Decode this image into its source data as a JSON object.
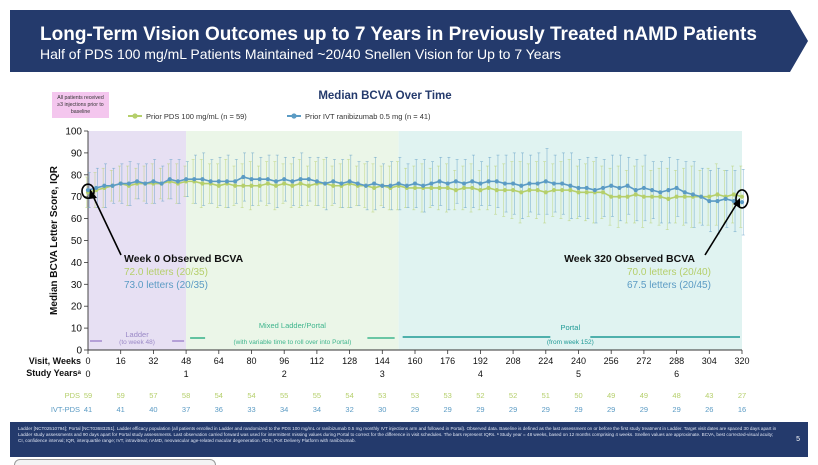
{
  "header": {
    "title": "Long-Term Vision Outcomes up to 7 Years in Previously Treated nAMD Patients",
    "subtitle": "Half of PDS 100 mg/mL Patients Maintained ~20/40 Snellen Vision for Up to 7 Years"
  },
  "footer": {
    "footnote": "Ladder [NCT02510794]; Portal [NCT03683251]. Ladder efficacy population (all patients enrolled in Ladder and randomized to the PDS 100 mg/mL or ranibizumab 0.5 mg monthly IVT injections arm and followed in Portal). Observed data. Baseline is defined as the last assessment on or before the first study treatment in Ladder. Target visit dates are spaced 30 days apart in Ladder study assessments and 90 days apart for Portal study assessments. Last observation carried forward was used for intermittent missing values during Portal to correct for the difference in visit schedules. The bars represent IQRs. ᵃ Study year = 48 weeks, based on 12 months comprising 4 weeks. Snellen values are approximate. BCVA, best corrected-visual acuity; CI, confidence interval; IQR, interquartile range; IVT, intravitreal; nAMD, neovascular age-related macular degeneration. PDS, Port Delivery Platform with ranibizumab.",
    "page_number": "5"
  },
  "colors": {
    "pds": "#b5cf6b",
    "ivt": "#5b9bc4",
    "ladder_bg": "#e7e0f3",
    "mixed_bg": "#ebf6e8",
    "portal_bg": "#e0f3f1",
    "header_bg": "#243a6c"
  },
  "chart_data": {
    "type": "line",
    "title": "Median BCVA Over Time",
    "ylabel": "Median BCVA Letter Score, IQR",
    "xlabel": "Visit, Weeks",
    "ylim": [
      0,
      100
    ],
    "yticks": [
      0,
      10,
      20,
      30,
      40,
      50,
      60,
      70,
      80,
      90,
      100
    ],
    "xlim": [
      0,
      320
    ],
    "xticks": [
      0,
      16,
      32,
      48,
      64,
      80,
      96,
      112,
      128,
      144,
      160,
      176,
      192,
      208,
      224,
      240,
      256,
      272,
      288,
      304,
      320
    ],
    "study_years_label": "Study Yearsᵃ",
    "study_years": [
      {
        "week": 0,
        "label": "0"
      },
      {
        "week": 48,
        "label": "1"
      },
      {
        "week": 96,
        "label": "2"
      },
      {
        "week": 144,
        "label": "3"
      },
      {
        "week": 192,
        "label": "4"
      },
      {
        "week": 240,
        "label": "5"
      },
      {
        "week": 288,
        "label": "6"
      }
    ],
    "baseline_note": "All patients received ≥3 injections prior to baseline",
    "legend_placement": "top-center",
    "series": [
      {
        "name": "Prior PDS 100 mg/mL (n = 59)",
        "color": "#b5cf6b",
        "points": [
          [
            0,
            72
          ],
          [
            4,
            73
          ],
          [
            8,
            74
          ],
          [
            12,
            75
          ],
          [
            16,
            76
          ],
          [
            20,
            75
          ],
          [
            24,
            76
          ],
          [
            28,
            76
          ],
          [
            32,
            76
          ],
          [
            36,
            76
          ],
          [
            40,
            77
          ],
          [
            44,
            76
          ],
          [
            48,
            77
          ],
          [
            52,
            77
          ],
          [
            56,
            76
          ],
          [
            60,
            76
          ],
          [
            64,
            75
          ],
          [
            68,
            76
          ],
          [
            72,
            75
          ],
          [
            76,
            75
          ],
          [
            80,
            75
          ],
          [
            84,
            75
          ],
          [
            88,
            76
          ],
          [
            92,
            75
          ],
          [
            96,
            76
          ],
          [
            100,
            75
          ],
          [
            104,
            76
          ],
          [
            108,
            75
          ],
          [
            112,
            76
          ],
          [
            116,
            76
          ],
          [
            120,
            75
          ],
          [
            124,
            75
          ],
          [
            128,
            76
          ],
          [
            132,
            75
          ],
          [
            136,
            75
          ],
          [
            140,
            74
          ],
          [
            144,
            75
          ],
          [
            148,
            74
          ],
          [
            152,
            75
          ],
          [
            156,
            74
          ],
          [
            160,
            74
          ],
          [
            164,
            74
          ],
          [
            168,
            74
          ],
          [
            172,
            74
          ],
          [
            176,
            74
          ],
          [
            180,
            73
          ],
          [
            184,
            74
          ],
          [
            188,
            74
          ],
          [
            192,
            73
          ],
          [
            196,
            74
          ],
          [
            200,
            73
          ],
          [
            204,
            73
          ],
          [
            208,
            73
          ],
          [
            212,
            72
          ],
          [
            216,
            73
          ],
          [
            220,
            73
          ],
          [
            224,
            72
          ],
          [
            228,
            73
          ],
          [
            232,
            73
          ],
          [
            236,
            73
          ],
          [
            240,
            72
          ],
          [
            244,
            72
          ],
          [
            248,
            72
          ],
          [
            252,
            72
          ],
          [
            256,
            70
          ],
          [
            260,
            70
          ],
          [
            264,
            70
          ],
          [
            268,
            71
          ],
          [
            272,
            70
          ],
          [
            276,
            70
          ],
          [
            280,
            70
          ],
          [
            284,
            69
          ],
          [
            288,
            70
          ],
          [
            292,
            70
          ],
          [
            296,
            70
          ],
          [
            300,
            70
          ],
          [
            304,
            70
          ],
          [
            308,
            71
          ],
          [
            312,
            70
          ],
          [
            316,
            71
          ],
          [
            320,
            70
          ]
        ],
        "iqr_halfwidth": 7
      },
      {
        "name": "Prior IVT ranibizumab 0.5 mg (n = 41)",
        "color": "#5b9bc4",
        "points": [
          [
            0,
            73
          ],
          [
            4,
            74
          ],
          [
            8,
            75
          ],
          [
            12,
            75
          ],
          [
            16,
            76
          ],
          [
            20,
            76
          ],
          [
            24,
            77
          ],
          [
            28,
            76
          ],
          [
            32,
            77
          ],
          [
            36,
            76
          ],
          [
            40,
            78
          ],
          [
            44,
            77
          ],
          [
            48,
            78
          ],
          [
            52,
            78
          ],
          [
            56,
            78
          ],
          [
            60,
            77
          ],
          [
            64,
            77
          ],
          [
            68,
            77
          ],
          [
            72,
            77
          ],
          [
            76,
            79
          ],
          [
            80,
            78
          ],
          [
            84,
            78
          ],
          [
            88,
            78
          ],
          [
            92,
            77
          ],
          [
            96,
            78
          ],
          [
            100,
            77
          ],
          [
            104,
            78
          ],
          [
            108,
            78
          ],
          [
            112,
            77
          ],
          [
            116,
            76
          ],
          [
            120,
            77
          ],
          [
            124,
            76
          ],
          [
            128,
            77
          ],
          [
            132,
            76
          ],
          [
            136,
            75
          ],
          [
            140,
            76
          ],
          [
            144,
            75
          ],
          [
            148,
            75
          ],
          [
            152,
            76
          ],
          [
            156,
            75
          ],
          [
            160,
            76
          ],
          [
            164,
            75
          ],
          [
            168,
            76
          ],
          [
            172,
            77
          ],
          [
            176,
            76
          ],
          [
            180,
            77
          ],
          [
            184,
            76
          ],
          [
            188,
            77
          ],
          [
            192,
            76
          ],
          [
            196,
            77
          ],
          [
            200,
            77
          ],
          [
            204,
            76
          ],
          [
            208,
            76
          ],
          [
            212,
            75
          ],
          [
            216,
            76
          ],
          [
            220,
            76
          ],
          [
            224,
            77
          ],
          [
            228,
            76
          ],
          [
            232,
            76
          ],
          [
            236,
            75
          ],
          [
            240,
            74
          ],
          [
            244,
            74
          ],
          [
            248,
            73
          ],
          [
            252,
            74
          ],
          [
            256,
            75
          ],
          [
            260,
            74
          ],
          [
            264,
            75
          ],
          [
            268,
            73
          ],
          [
            272,
            74
          ],
          [
            276,
            73
          ],
          [
            280,
            72
          ],
          [
            284,
            73
          ],
          [
            288,
            74
          ],
          [
            292,
            72
          ],
          [
            296,
            71
          ],
          [
            300,
            70
          ],
          [
            304,
            68
          ],
          [
            308,
            68
          ],
          [
            312,
            69
          ],
          [
            316,
            68
          ],
          [
            320,
            67.5
          ]
        ],
        "iqr_halfwidth": 8
      }
    ],
    "phases": [
      {
        "name": "Ladder",
        "sub": "(to week 48)",
        "start": 0,
        "end": 48,
        "color": "#e7e0f3",
        "line_color": "#a78fd0",
        "text_color": "#9a88c6"
      },
      {
        "name": "Mixed Ladder/Portal",
        "sub": "(with variable time to roll over into Portal)",
        "start": 48,
        "end": 152,
        "color": "#ebf6e8",
        "line_color": "#3fb58d",
        "text_color": "#3fb58d"
      },
      {
        "name": "Portal",
        "sub": "(from week 152)",
        "start": 152,
        "end": 320,
        "color": "#e0f3f1",
        "line_color": "#1f9a96",
        "text_color": "#1f9a96"
      }
    ],
    "annotations": {
      "week0": {
        "title": "Week 0 Observed BCVA",
        "pds": "72.0 letters (20/35)",
        "ivt": "73.0 letters (20/35)"
      },
      "week320": {
        "title": "Week 320 Observed BCVA",
        "pds": "70.0 letters (20/40)",
        "ivt": "67.5 letters (20/45)"
      }
    },
    "n_table": {
      "weeks": [
        0,
        16,
        32,
        48,
        64,
        80,
        96,
        112,
        128,
        144,
        160,
        176,
        192,
        208,
        224,
        240,
        256,
        272,
        288,
        304,
        320
      ],
      "rows": [
        {
          "label": "PDS",
          "color": "#b5cf6b",
          "values": [
            "59",
            "59",
            "57",
            "58",
            "54",
            "54",
            "55",
            "55",
            "54",
            "53",
            "53",
            "53",
            "52",
            "52",
            "51",
            "50",
            "49",
            "49",
            "48",
            "43",
            "27"
          ]
        },
        {
          "label": "IVT-PDS",
          "color": "#5b9bc4",
          "values": [
            "41",
            "41",
            "40",
            "37",
            "36",
            "33",
            "34",
            "34",
            "32",
            "30",
            "29",
            "29",
            "29",
            "29",
            "29",
            "29",
            "29",
            "29",
            "29",
            "26",
            "16"
          ]
        }
      ]
    }
  }
}
